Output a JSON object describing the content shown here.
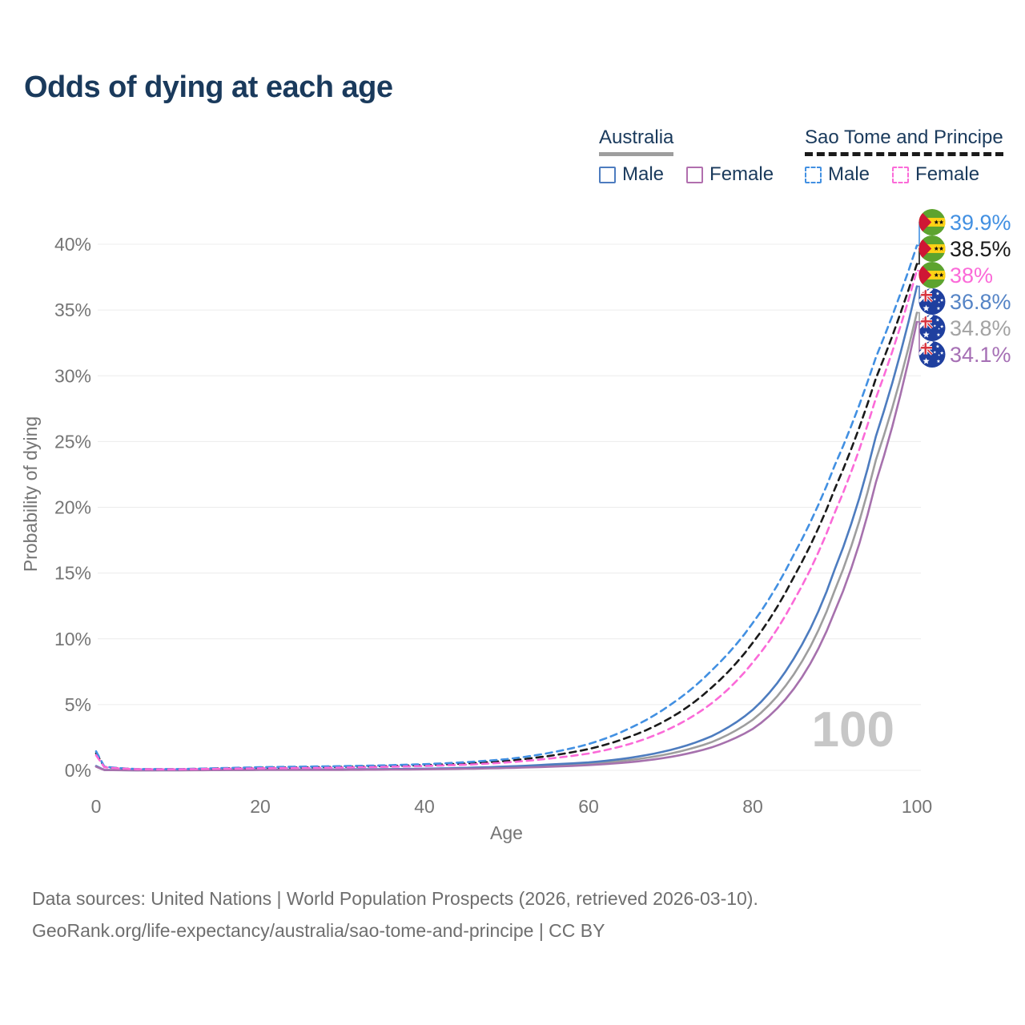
{
  "title": "Odds of dying at each age",
  "legend": {
    "groups": [
      {
        "title": "Australia",
        "line_color": "#9e9e9e",
        "line_style": "solid",
        "items": [
          {
            "label": "Male",
            "color": "#4d7cbf",
            "style": "solid"
          },
          {
            "label": "Female",
            "color": "#b16fae",
            "style": "solid"
          }
        ]
      },
      {
        "title": "Sao Tome and Principe",
        "line_color": "#1a1a1a",
        "line_style": "dashed",
        "items": [
          {
            "label": "Male",
            "color": "#4290e2",
            "style": "dashed"
          },
          {
            "label": "Female",
            "color": "#fb6ad8",
            "style": "dashed"
          }
        ]
      }
    ]
  },
  "flags": {
    "stp": {
      "green": "#5da32e",
      "yellow": "#ffd215",
      "red": "#cf1635",
      "star": "#111111"
    },
    "aus": {
      "field": "#1f3f9f",
      "jack_red": "#d8353f",
      "white": "#ffffff"
    }
  },
  "chart_data": {
    "type": "line",
    "title": "Odds of dying at each age",
    "xlabel": "Age",
    "ylabel": "Probability of dying",
    "xlim": [
      0,
      100
    ],
    "ylim": [
      0,
      42
    ],
    "x_ticks": [
      0,
      20,
      40,
      60,
      80,
      100
    ],
    "y_ticks": [
      0,
      5,
      10,
      15,
      20,
      25,
      30,
      35,
      40
    ],
    "y_tick_suffix": "%",
    "grid": "horizontal",
    "legend_position": "top-right",
    "watermark": "100",
    "knot_ages": [
      0,
      1,
      5,
      10,
      15,
      20,
      25,
      30,
      35,
      40,
      45,
      50,
      55,
      60,
      65,
      70,
      75,
      80,
      85,
      90,
      95,
      100
    ],
    "series": [
      {
        "name": "Australia",
        "sex": "Total",
        "flag": "aus",
        "color": "#9e9e9e",
        "dash": false,
        "end_label": "34.8%",
        "end_value": 34.8,
        "label_color": "#a3a3a3",
        "values": [
          0.3,
          0.028,
          0.009,
          0.011,
          0.03,
          0.047,
          0.05,
          0.057,
          0.075,
          0.1,
          0.15,
          0.23,
          0.35,
          0.5,
          0.78,
          1.28,
          2.15,
          3.85,
          7.3,
          13.7,
          23.6,
          34.8
        ]
      },
      {
        "name": "Australia",
        "sex": "Male",
        "flag": "aus",
        "color": "#4d7cbf",
        "dash": false,
        "end_label": "36.8%",
        "end_value": 36.8,
        "label_color": "#5584c6",
        "values": [
          0.33,
          0.03,
          0.01,
          0.012,
          0.04,
          0.065,
          0.07,
          0.075,
          0.095,
          0.125,
          0.19,
          0.29,
          0.44,
          0.6,
          0.95,
          1.55,
          2.6,
          4.6,
          8.5,
          15.3,
          25.4,
          36.8
        ]
      },
      {
        "name": "Australia",
        "sex": "Female",
        "flag": "aus",
        "color": "#a671ad",
        "dash": false,
        "end_label": "34.1%",
        "end_value": 34.1,
        "label_color": "#a670b5",
        "values": [
          0.28,
          0.025,
          0.008,
          0.01,
          0.02,
          0.028,
          0.03,
          0.038,
          0.055,
          0.08,
          0.12,
          0.18,
          0.27,
          0.4,
          0.62,
          1.02,
          1.75,
          3.15,
          6.2,
          12.1,
          21.9,
          34.1
        ]
      },
      {
        "name": "Sao Tome and Principe",
        "sex": "Total",
        "flag": "stp",
        "color": "#1a1a1a",
        "dash": true,
        "end_label": "38.5%",
        "end_value": 38.5,
        "label_color": "#1a1a1a",
        "values": [
          1.3,
          0.26,
          0.09,
          0.085,
          0.15,
          0.2,
          0.23,
          0.27,
          0.32,
          0.4,
          0.52,
          0.72,
          1.08,
          1.62,
          2.55,
          4.0,
          6.3,
          9.7,
          14.7,
          21.4,
          29.8,
          38.5
        ]
      },
      {
        "name": "Sao Tome and Principe",
        "sex": "Male",
        "flag": "stp",
        "color": "#4290e2",
        "dash": true,
        "end_label": "39.9%",
        "end_value": 39.9,
        "label_color": "#4290e2",
        "values": [
          1.45,
          0.28,
          0.1,
          0.095,
          0.17,
          0.24,
          0.28,
          0.32,
          0.38,
          0.47,
          0.62,
          0.85,
          1.3,
          2.0,
          3.2,
          5.0,
          7.6,
          11.2,
          16.4,
          23.2,
          31.4,
          39.9
        ]
      },
      {
        "name": "Sao Tome and Principe",
        "sex": "Female",
        "flag": "stp",
        "color": "#fb6ad8",
        "dash": true,
        "end_label": "38%",
        "end_value": 38.0,
        "label_color": "#fb6ad8",
        "values": [
          1.15,
          0.24,
          0.085,
          0.08,
          0.12,
          0.16,
          0.18,
          0.21,
          0.26,
          0.33,
          0.43,
          0.6,
          0.88,
          1.28,
          2.0,
          3.2,
          5.1,
          8.2,
          12.9,
          19.6,
          28.3,
          38.0
        ]
      }
    ]
  },
  "footer": {
    "line1": "Data sources: United Nations | World Population Prospects (2026, retrieved 2026-03-10).",
    "line2": "GeoRank.org/life-expectancy/australia/sao-tome-and-principe | CC BY"
  }
}
